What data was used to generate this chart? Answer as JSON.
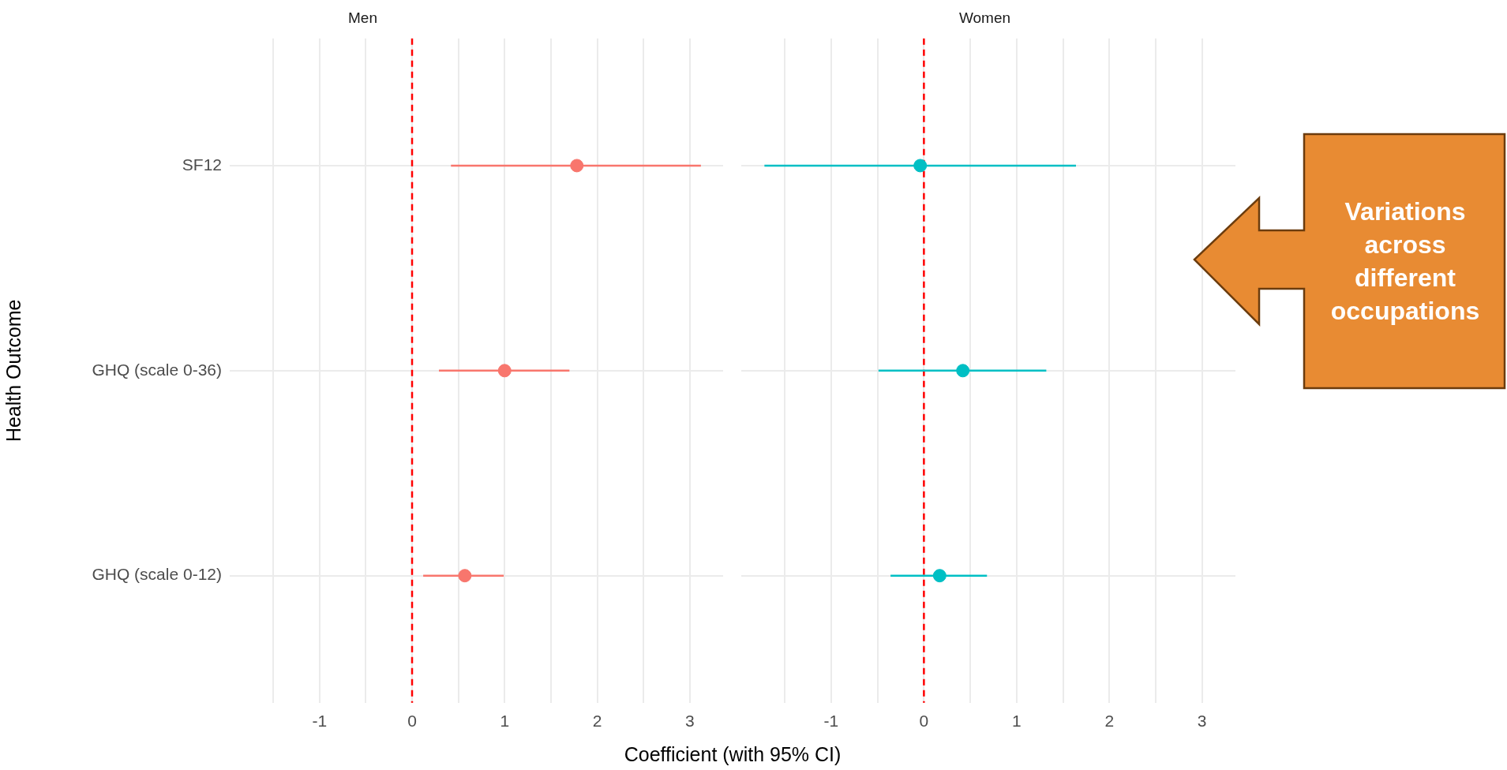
{
  "chart_data": [
    {
      "type": "scatter",
      "orientation": "horizontal",
      "title": "Men",
      "ylabel": "Health Outcome",
      "xlabel": "Coefficient (with 95% CI)",
      "categories": [
        "SF12",
        "GHQ (scale 0-36)",
        "GHQ (scale 0-12)"
      ],
      "values": [
        1.78,
        1.0,
        0.57
      ],
      "errors": [
        [
          0.42,
          3.12
        ],
        [
          0.29,
          1.7
        ],
        [
          0.12,
          0.99
        ]
      ],
      "color": "#f8766d",
      "marker": "circle",
      "xlim": [
        -1.97,
        3.36
      ],
      "xticks": [
        {
          "value": -1.5,
          "label": null
        },
        -1,
        {
          "value": -0.5,
          "label": null
        },
        0,
        {
          "value": 0.5,
          "label": null
        },
        1,
        {
          "value": 1.5,
          "label": null
        },
        2,
        {
          "value": 2.5,
          "label": null
        },
        3
      ],
      "ref_lines": [
        {
          "axis": "x",
          "value": 0,
          "color": "#ff0000",
          "line_style": "dashed"
        }
      ],
      "grid": true,
      "legend": false
    },
    {
      "type": "scatter",
      "orientation": "horizontal",
      "title": "Women",
      "categories": [
        null,
        null,
        null
      ],
      "values": [
        -0.04,
        0.42,
        0.17
      ],
      "errors": [
        [
          -1.72,
          1.64
        ],
        [
          -0.49,
          1.32
        ],
        [
          -0.36,
          0.68
        ]
      ],
      "color": "#00bfc4",
      "marker": "circle",
      "xlim": [
        -1.97,
        3.36
      ],
      "xticks": [
        {
          "value": -1.5,
          "label": null
        },
        -1,
        {
          "value": -0.5,
          "label": null
        },
        0,
        {
          "value": 0.5,
          "label": null
        },
        1,
        {
          "value": 1.5,
          "label": null
        },
        2,
        {
          "value": 2.5,
          "label": null
        },
        3
      ],
      "ref_lines": [
        {
          "axis": "x",
          "value": 0,
          "color": "#ff0000",
          "line_style": "dashed"
        }
      ],
      "grid": true,
      "legend": false,
      "tick_labels": "x",
      "annotations": [
        "Variations across different occupations"
      ]
    }
  ]
}
